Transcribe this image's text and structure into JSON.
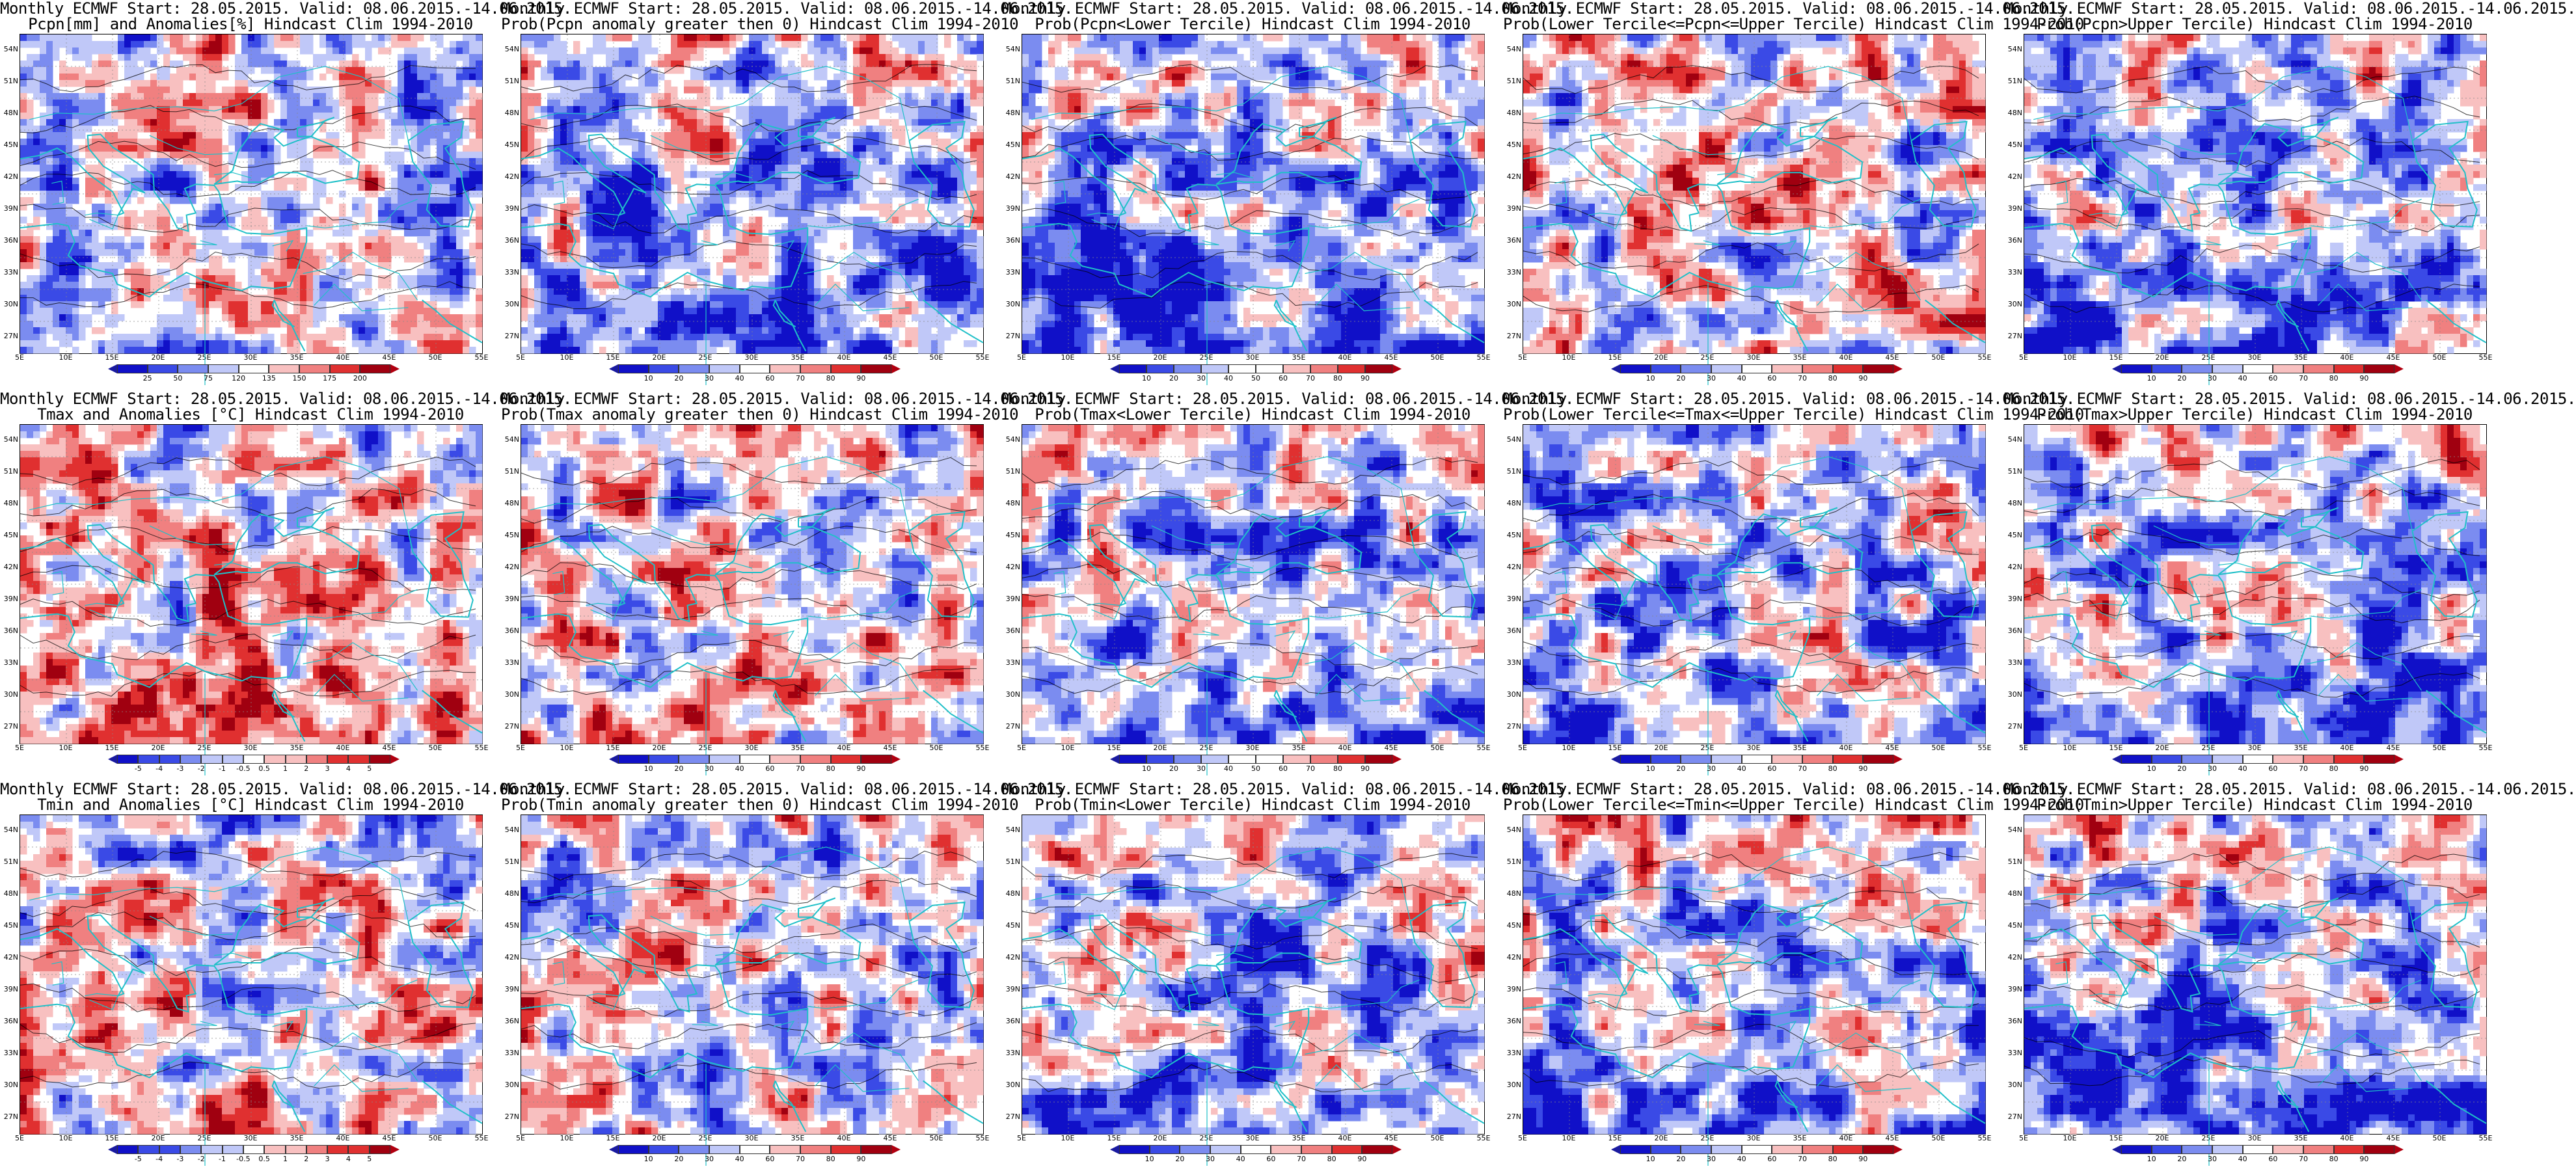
{
  "latitude_labels": [
    "54N",
    "51N",
    "48N",
    "45N",
    "42N",
    "39N",
    "36N",
    "33N",
    "30N",
    "27N"
  ],
  "longitude_labels": [
    "5E",
    "10E",
    "15E",
    "20E",
    "25E",
    "30E",
    "35E",
    "40E",
    "45E",
    "50E",
    "55E"
  ],
  "colors": {
    "deep_blue": "#1010c8",
    "blue": "#3a4ae6",
    "mid_blue": "#7b8cf0",
    "light_blue": "#c0c8f8",
    "white": "#ffffff",
    "light_red": "#f8c0c0",
    "mid_red": "#f08080",
    "red": "#e03030",
    "deep_red": "#a00010",
    "coastline": "#20c0c8",
    "contour": "#000000"
  },
  "panels": [
    {
      "title1": "Monthly ECMWF Start: 28.05.2015. Valid: 08.06.2015.-14.06.2015.",
      "title2": "Pcpn[mm] and Anomalies[%] Hindcast Clim 1994-2010",
      "colorbar_ticks": [
        "25",
        "50",
        "75",
        "120",
        "135",
        "150",
        "175",
        "200"
      ],
      "palette": "anom",
      "seed": 11,
      "bias": -0.05
    },
    {
      "title1": "Monthly ECMWF Start: 28.05.2015. Valid: 08.06.2015.-14.06.2015.",
      "title2": "Prob(Pcpn anomaly greater then 0) Hindcast Clim 1994-2010",
      "colorbar_ticks": [
        "10",
        "20",
        "30",
        "40",
        "60",
        "70",
        "80",
        "90"
      ],
      "palette": "prob",
      "seed": 23,
      "bias": -0.45
    },
    {
      "title1": "Monthly ECMWF Start: 28.05.2015. Valid: 08.06.2015.-14.06.2015.",
      "title2": "Prob(Pcpn<Lower Tercile) Hindcast Clim 1994-2010",
      "colorbar_ticks": [
        "10",
        "20",
        "30",
        "40",
        "50",
        "60",
        "70",
        "80",
        "90"
      ],
      "palette": "prob",
      "seed": 37,
      "bias": -0.6
    },
    {
      "title1": "Monthly ECMWF Start: 28.05.2015. Valid: 08.06.2015.-14.06.2015.",
      "title2": "Prob(Lower Tercile<=Pcpn<=Upper Tercile) Hindcast Clim 1994-2010",
      "colorbar_ticks": [
        "10",
        "20",
        "30",
        "40",
        "60",
        "70",
        "80",
        "90"
      ],
      "palette": "prob",
      "seed": 41,
      "bias": 0.1
    },
    {
      "title1": "Monthly ECMWF Start: 28.05.2015. Valid: 08.06.2015.-14.06.2015.",
      "title2": "Prob(Pcpn>Upper Tercile) Hindcast Clim 1994-2010",
      "colorbar_ticks": [
        "10",
        "20",
        "30",
        "40",
        "60",
        "70",
        "80",
        "90"
      ],
      "palette": "prob",
      "seed": 53,
      "bias": -0.4
    },
    {
      "title1": "Monthly ECMWF Start: 28.05.2015. Valid: 08.06.2015.-14.06.2015.",
      "title2": "Tmax and Anomalies [°C] Hindcast Clim 1994-2010",
      "colorbar_ticks": [
        "-5",
        "-4",
        "-3",
        "-2",
        "-1",
        "-0.5",
        "0.5",
        "1",
        "2",
        "3",
        "4",
        "5"
      ],
      "palette": "anom",
      "seed": 61,
      "bias": 0.25
    },
    {
      "title1": "Monthly ECMWF Start: 28.05.2015. Valid: 08.06.2015.-14.06.2015.",
      "title2": "Prob(Tmax anomaly greater then 0) Hindcast Clim 1994-2010",
      "colorbar_ticks": [
        "10",
        "20",
        "30",
        "40",
        "60",
        "70",
        "80",
        "90"
      ],
      "palette": "prob",
      "seed": 71,
      "bias": 0.15
    },
    {
      "title1": "Monthly ECMWF Start: 28.05.2015. Valid: 08.06.2015.-14.06.2015.",
      "title2": "Prob(Tmax<Lower Tercile) Hindcast Clim 1994-2010",
      "colorbar_ticks": [
        "10",
        "20",
        "30",
        "40",
        "50",
        "60",
        "70",
        "80",
        "90"
      ],
      "palette": "prob",
      "seed": 83,
      "bias": -0.35
    },
    {
      "title1": "Monthly ECMWF Start: 28.05.2015. Valid: 08.06.2015.-14.06.2015.",
      "title2": "Prob(Lower Tercile<=Tmax<=Upper Tercile) Hindcast Clim 1994-2010",
      "colorbar_ticks": [
        "10",
        "20",
        "30",
        "40",
        "60",
        "70",
        "80",
        "90"
      ],
      "palette": "prob",
      "seed": 97,
      "bias": -0.3
    },
    {
      "title1": "Monthly ECMWF Start: 28.05.2015. Valid: 08.06.2015.-14.06.2015.",
      "title2": "Prob(Tmax>Upper Tercile) Hindcast Clim 1994-2010",
      "colorbar_ticks": [
        "10",
        "20",
        "30",
        "40",
        "60",
        "70",
        "80",
        "90"
      ],
      "palette": "prob",
      "seed": 101,
      "bias": -0.4
    },
    {
      "title1": "Monthly ECMWF Start: 28.05.2015. Valid: 08.06.2015.-14.06.2015.",
      "title2": "Tmin and Anomalies [°C] Hindcast Clim 1994-2010",
      "colorbar_ticks": [
        "-5",
        "-4",
        "-3",
        "-2",
        "-1",
        "-0.5",
        "0.5",
        "1",
        "2",
        "3",
        "4",
        "5"
      ],
      "palette": "anom",
      "seed": 113,
      "bias": 0.15
    },
    {
      "title1": "Monthly ECMWF Start: 28.05.2015. Valid: 08.06.2015.-14.06.2015.",
      "title2": "Prob(Tmin anomaly greater then 0) Hindcast Clim 1994-2010",
      "colorbar_ticks": [
        "10",
        "20",
        "30",
        "40",
        "60",
        "70",
        "80",
        "90"
      ],
      "palette": "prob",
      "seed": 127,
      "bias": 0.0
    },
    {
      "title1": "Monthly ECMWF Start: 28.05.2015. Valid: 08.06.2015.-14.06.2015.",
      "title2": "Prob(Tmin<Lower Tercile) Hindcast Clim 1994-2010",
      "colorbar_ticks": [
        "10",
        "20",
        "30",
        "40",
        "60",
        "70",
        "80",
        "90"
      ],
      "palette": "prob",
      "seed": 131,
      "bias": -0.3
    },
    {
      "title1": "Monthly ECMWF Start: 28.05.2015. Valid: 08.06.2015.-14.06.2015.",
      "title2": "Prob(Lower Tercile<=Tmin<=Upper Tercile) Hindcast Clim 1994-2010",
      "colorbar_ticks": [
        "10",
        "20",
        "30",
        "40",
        "60",
        "70",
        "80",
        "90"
      ],
      "palette": "prob",
      "seed": 139,
      "bias": -0.35
    },
    {
      "title1": "Monthly ECMWF Start: 28.05.2015. Valid: 08.06.2015.-14.06.2015.",
      "title2": "Prob(Tmin>Upper Tercile) Hindcast Clim 1994-2010",
      "colorbar_ticks": [
        "10",
        "20",
        "30",
        "40",
        "60",
        "70",
        "80",
        "90"
      ],
      "palette": "prob",
      "seed": 149,
      "bias": -0.45
    }
  ]
}
